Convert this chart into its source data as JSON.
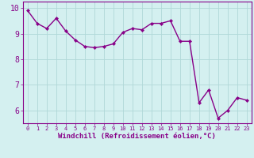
{
  "x": [
    0,
    1,
    2,
    3,
    4,
    5,
    6,
    7,
    8,
    9,
    10,
    11,
    12,
    13,
    14,
    15,
    16,
    17,
    18,
    19,
    20,
    21,
    22,
    23
  ],
  "y": [
    9.9,
    9.4,
    9.2,
    9.6,
    9.1,
    8.75,
    8.5,
    8.45,
    8.5,
    8.6,
    9.05,
    9.2,
    9.15,
    9.4,
    9.4,
    9.5,
    8.7,
    8.7,
    6.3,
    6.8,
    5.7,
    6.0,
    6.5,
    6.4
  ],
  "color": "#880088",
  "bg_color": "#d4f0f0",
  "grid_color": "#b0d8d8",
  "xlabel": "Windchill (Refroidissement éolien,°C)",
  "xlim": [
    -0.5,
    23.5
  ],
  "ylim": [
    5.5,
    10.25
  ],
  "yticks": [
    6,
    7,
    8,
    9,
    10
  ],
  "xticks": [
    0,
    1,
    2,
    3,
    4,
    5,
    6,
    7,
    8,
    9,
    10,
    11,
    12,
    13,
    14,
    15,
    16,
    17,
    18,
    19,
    20,
    21,
    22,
    23
  ],
  "marker": "D",
  "markersize": 2.2,
  "linewidth": 1.0,
  "xlabel_fontsize": 6.5,
  "ytick_fontsize": 7.0,
  "xtick_fontsize": 5.0
}
